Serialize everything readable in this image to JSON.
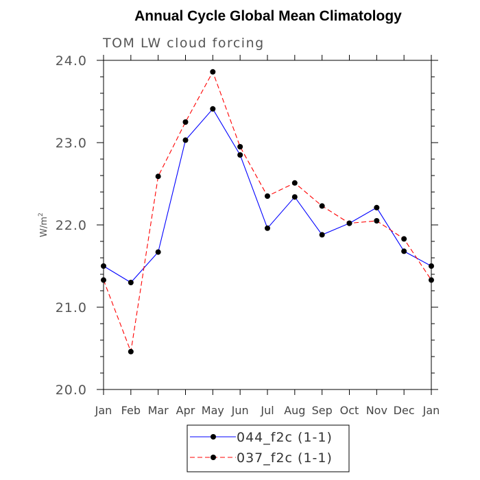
{
  "chart_data": {
    "type": "line",
    "title": "Annual Cycle Global Mean Climatology",
    "subtitle": "TOM LW cloud forcing",
    "xlabel": "",
    "ylabel": "W/m",
    "ylabel_sup": "2",
    "categories": [
      "Jan",
      "Feb",
      "Mar",
      "Apr",
      "May",
      "Jun",
      "Jul",
      "Aug",
      "Sep",
      "Oct",
      "Nov",
      "Dec",
      "Jan"
    ],
    "ylim": [
      20.0,
      24.0
    ],
    "yticks": [
      "20.0",
      "21.0",
      "22.0",
      "23.0",
      "24.0"
    ],
    "series": [
      {
        "name": "044_f2c (1-1)",
        "color": "#0000ff",
        "dash": "solid",
        "values": [
          21.5,
          21.3,
          21.67,
          23.03,
          23.41,
          22.85,
          21.96,
          22.34,
          21.88,
          22.02,
          22.21,
          21.68,
          21.5
        ]
      },
      {
        "name": "037_f2c (1-1)",
        "color": "#ff0000",
        "dash": "dashed",
        "values": [
          21.33,
          20.46,
          22.59,
          23.25,
          23.86,
          22.95,
          22.35,
          22.51,
          22.23,
          22.02,
          22.05,
          21.83,
          21.33
        ]
      }
    ],
    "legend_position": "bottom-center",
    "grid": false
  }
}
